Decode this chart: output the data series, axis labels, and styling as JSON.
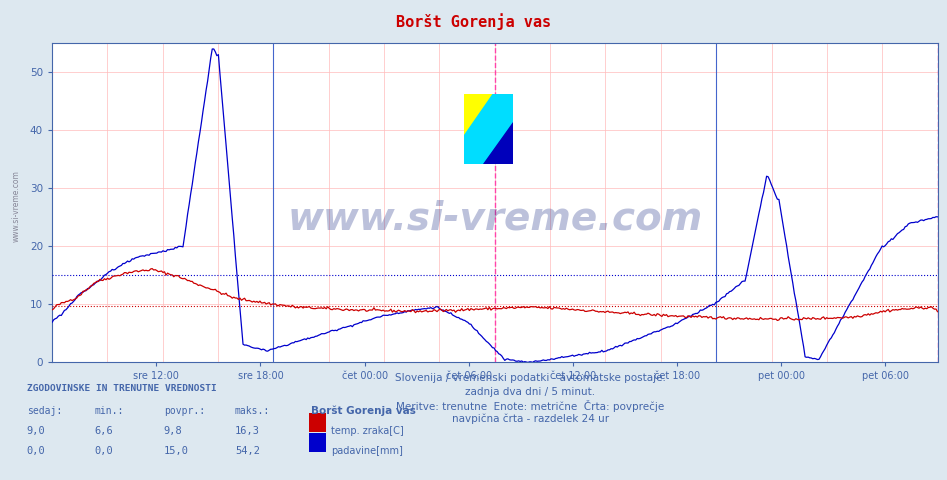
{
  "title": "Boršt Gorenja vas",
  "background_color": "#dde8f0",
  "plot_bg_color": "#ffffff",
  "ylim": [
    0,
    55
  ],
  "yticks": [
    0,
    10,
    20,
    30,
    40,
    50
  ],
  "avg_line_red": 9.8,
  "avg_line_blue": 15.0,
  "xtick_labels": [
    "sre 12:00",
    "sre 18:00",
    "čet 00:00",
    "čet 06:00",
    "čet 12:00",
    "čet 18:00",
    "pet 00:00",
    "pet 06:00"
  ],
  "subtitle1": "Slovenija / vremenski podatki - avtomatske postaje.",
  "subtitle2": "zadnja dva dni / 5 minut.",
  "subtitle3": "Meritve: trenutne  Enote: metrične  Črta: povprečje",
  "subtitle4": "navpična črta - razdelek 24 ur",
  "legend_title": "ZGODOVINSKE IN TRENUTNE VREDNOSTI",
  "legend_headers": [
    "sedaj:",
    "min.:",
    "povpr.:",
    "maks.:"
  ],
  "legend_row1": [
    "9,0",
    "6,6",
    "9,8",
    "16,3"
  ],
  "legend_row2": [
    "0,0",
    "0,0",
    "15,0",
    "54,2"
  ],
  "legend_series": [
    "temp. zraka[C]",
    "padavine[mm]"
  ],
  "series1_color": "#cc0000",
  "series2_color": "#0000cc",
  "title_color": "#cc0000",
  "text_color": "#4466aa",
  "watermark_text": "www.si-vreme.com",
  "sidebar_text": "www.si-vreme.com"
}
